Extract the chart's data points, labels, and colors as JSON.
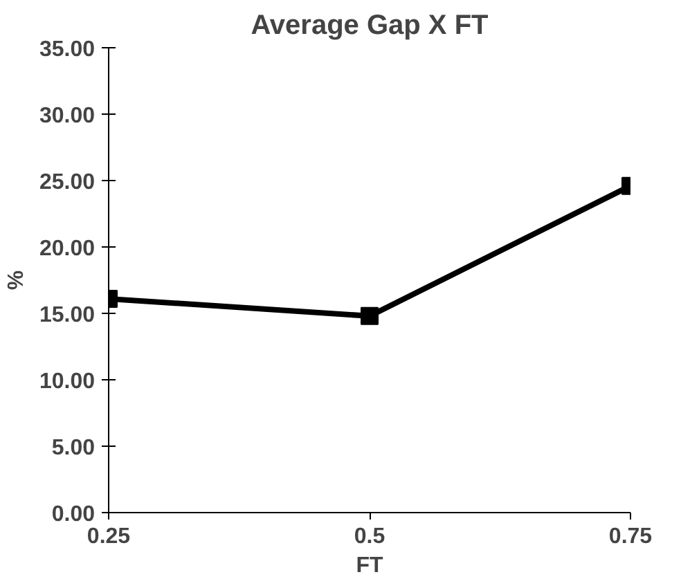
{
  "chart_data": {
    "type": "line",
    "title": "Average Gap X FT",
    "xlabel": "FT",
    "ylabel": "%",
    "x": [
      0.25,
      0.5,
      0.75
    ],
    "series": [
      {
        "color": "#000000",
        "values": [
          16.1,
          14.8,
          24.6
        ]
      }
    ],
    "xlim": [
      0.25,
      0.75
    ],
    "xticks": [
      0.25,
      0.5,
      0.75
    ],
    "ylim": [
      0,
      35
    ],
    "yticks": [
      {
        "value": 0,
        "label": "0.00"
      },
      {
        "value": 5,
        "label": "5.00"
      },
      {
        "value": 10,
        "label": "10.00"
      },
      {
        "value": 15,
        "label": "15.00"
      },
      {
        "value": 20,
        "label": "20.00"
      },
      {
        "value": 25,
        "label": "25.00"
      },
      {
        "value": 30,
        "label": "30.00"
      },
      {
        "value": 35,
        "label": "35.00"
      }
    ],
    "grid": false,
    "marker": "square",
    "line_style": "solid"
  }
}
